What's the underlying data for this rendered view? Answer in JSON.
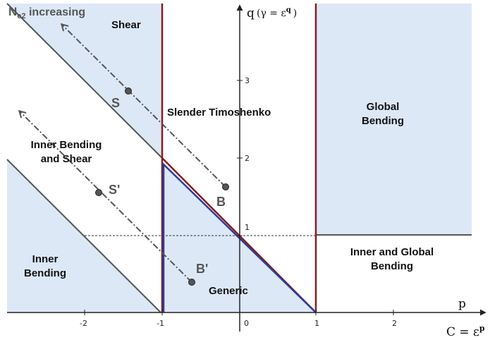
{
  "colors": {
    "region_fill": "#dde8f7",
    "red_line": "#8b1a1a",
    "blue_line": "#2a3d9a",
    "gray_line": "#555555",
    "axis": "#222222",
    "point": "#555555"
  },
  "regions": {
    "shear": "Shear",
    "slender_timoshenko": "Slender Timoshenko",
    "global_bending": [
      "Global",
      "Bending"
    ],
    "inner_bending_shear": [
      "Inner Bending",
      "and Shear"
    ],
    "inner_bending": [
      "Inner",
      "Bending"
    ],
    "generic": "Generic",
    "inner_global_bending": [
      "Inner and Global",
      "Bending"
    ]
  },
  "header": {
    "ne2_prefix": "N",
    "ne2_sub": "e2",
    "ne2_suffix": " increasing"
  },
  "axes": {
    "q_label": "q",
    "gamma_expr": "(γ = ε",
    "gamma_exp": "q",
    "gamma_close": ")",
    "p_label": "p",
    "c_expr": "C = ε",
    "c_exp": "p",
    "x_ticks": [
      "-2",
      "-1",
      "0",
      "1",
      "2"
    ],
    "y_ticks": [
      "1",
      "2",
      "3"
    ]
  },
  "points": {
    "S": "S",
    "B": "B",
    "S_prime": "S'",
    "B_prime": "B'"
  }
}
